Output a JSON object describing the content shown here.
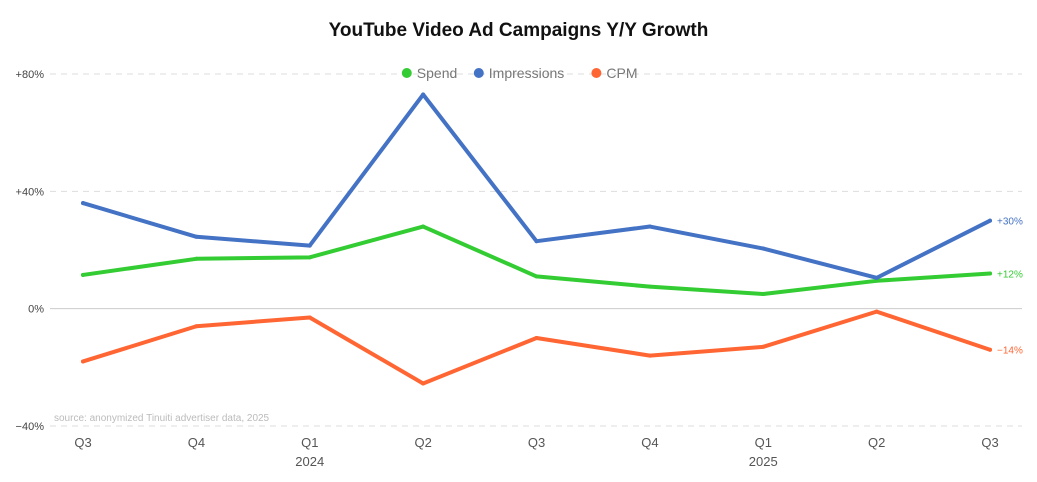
{
  "chart_data": {
    "type": "line",
    "title": "YouTube Video Ad Campaigns Y/Y Growth",
    "categories": [
      "Q3",
      "Q4",
      "Q1",
      "Q2",
      "Q3",
      "Q4",
      "Q1",
      "Q2",
      "Q3"
    ],
    "year_labels": [
      {
        "index": 2,
        "label": "2024"
      },
      {
        "index": 6,
        "label": "2025"
      }
    ],
    "ylim": [
      -40,
      80
    ],
    "yticks": [
      {
        "value": 80,
        "label": "+80%"
      },
      {
        "value": 40,
        "label": "+40%"
      },
      {
        "value": 0,
        "label": "0%"
      },
      {
        "value": -40,
        "label": "−40%"
      }
    ],
    "series": [
      {
        "name": "Spend",
        "color": "#33cc33",
        "values": [
          11.5,
          17,
          17.5,
          28,
          11,
          7.5,
          5,
          9.5,
          12
        ],
        "end_label": "+12%"
      },
      {
        "name": "Impressions",
        "color": "#4472c4",
        "values": [
          36,
          24.5,
          21.5,
          73,
          23,
          28,
          20.5,
          10.5,
          30
        ],
        "end_label": "+30%"
      },
      {
        "name": "CPM",
        "color": "#ff6633",
        "values": [
          -18,
          -6,
          -3,
          -25.5,
          -10,
          -16,
          -13,
          -1,
          -14
        ],
        "end_label": "−14%"
      }
    ],
    "source": "source: anonymized Tinuiti advertiser data, 2025",
    "grid": true,
    "legend": "top-center"
  }
}
